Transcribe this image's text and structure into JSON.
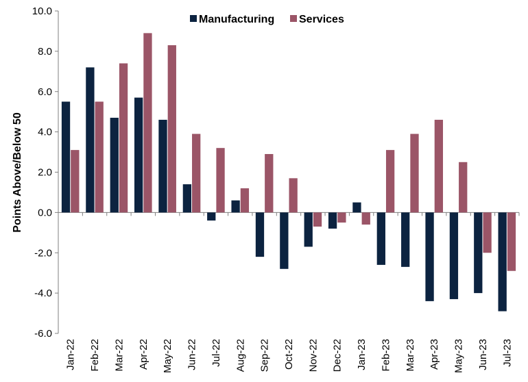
{
  "chart_data": {
    "type": "bar",
    "ylabel": "Points Above/Below 50",
    "xlabel": "",
    "ylim": [
      -6.0,
      10.0
    ],
    "ytick_step": 2.0,
    "ytick_labels": [
      "-6.0",
      "-4.0",
      "-2.0",
      "0.0",
      "2.0",
      "4.0",
      "6.0",
      "8.0",
      "10.0"
    ],
    "categories": [
      "Jan-22",
      "Feb-22",
      "Mar-22",
      "Apr-22",
      "May-22",
      "Jun-22",
      "Jul-22",
      "Aug-22",
      "Sep-22",
      "Oct-22",
      "Nov-22",
      "Dec-22",
      "Jan-23",
      "Feb-23",
      "Mar-23",
      "Apr-23",
      "May-23",
      "Jun-23",
      "Jul-23"
    ],
    "series": [
      {
        "name": "Manufacturing",
        "color": "#0c2340",
        "values": [
          5.5,
          7.2,
          4.7,
          5.7,
          4.6,
          1.4,
          -0.4,
          0.6,
          -2.2,
          -2.8,
          -1.7,
          -0.8,
          0.5,
          -2.6,
          -2.7,
          -4.4,
          -4.3,
          -4.0,
          -4.9
        ]
      },
      {
        "name": "Services",
        "color": "#9b5567",
        "values": [
          3.1,
          5.5,
          7.4,
          8.9,
          8.3,
          3.9,
          3.2,
          1.2,
          2.9,
          1.7,
          -0.7,
          -0.5,
          -0.6,
          3.1,
          3.9,
          4.6,
          2.5,
          -2.0,
          -2.9
        ]
      }
    ],
    "legend": "top-center",
    "grid": false
  }
}
